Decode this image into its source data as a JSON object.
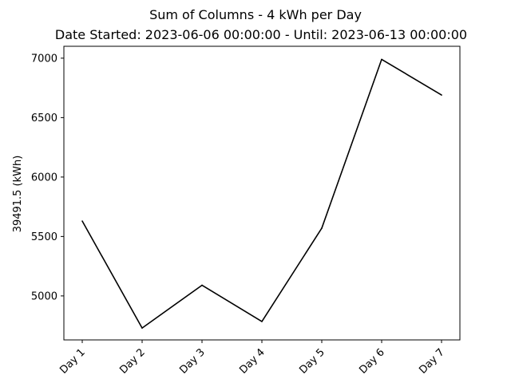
{
  "chart_data": {
    "type": "line",
    "title": "Sum of Columns - 4 kWh per Day",
    "subtitle": "Date Started: 2023-06-06 00:00:00 - Until: 2023-06-13 00:00:00",
    "xlabel": "",
    "ylabel": "39491.5 (kWh)",
    "categories": [
      "Day 1",
      "Day 2",
      "Day 3",
      "Day 4",
      "Day 5",
      "Day 6",
      "Day 7"
    ],
    "series": [
      {
        "values": [
          5630,
          4730,
          5090,
          4785,
          5570,
          6990,
          6690
        ],
        "color": "#000000"
      }
    ],
    "ylim": [
      4630,
      7100
    ],
    "yticks": [
      5000,
      5500,
      6000,
      6500,
      7000
    ],
    "grid": false,
    "legend": "none"
  }
}
